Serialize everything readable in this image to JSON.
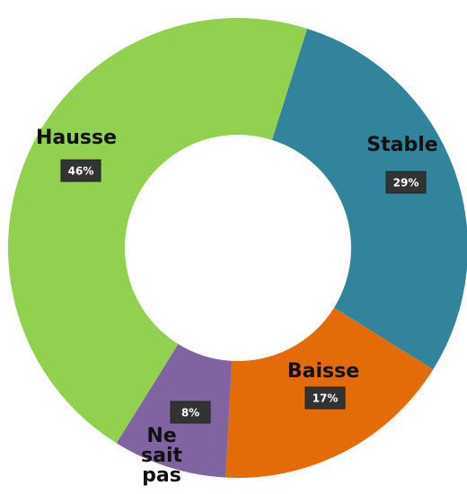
{
  "chart_data": {
    "type": "donut",
    "categories": [
      "Stable",
      "Baisse",
      "Ne sait pas",
      "Hausse"
    ],
    "values": [
      29,
      17,
      8,
      46
    ],
    "value_labels": [
      "29%",
      "17%",
      "8%",
      "46%"
    ],
    "colors": [
      "#31849b",
      "#e36c09",
      "#8064a2",
      "#92d050"
    ]
  }
}
